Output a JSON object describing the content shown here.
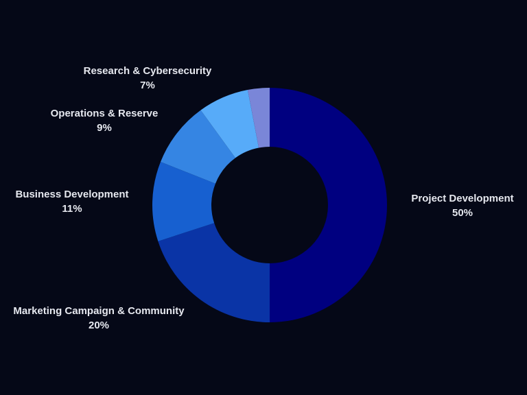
{
  "chart_data": {
    "type": "pie",
    "donut": true,
    "categories": [
      "Project Development",
      "Marketing Campaign & Community",
      "Business Development",
      "Operations & Reserve",
      "Research & Cybersecurity",
      ""
    ],
    "values": [
      50,
      20,
      11,
      9,
      7,
      3
    ],
    "percent_labels": [
      "50%",
      "20%",
      "11%",
      "9%",
      "7%",
      ""
    ],
    "colors": [
      "#000080",
      "#0a34a6",
      "#1760d0",
      "#3585e3",
      "#57abf9",
      "#7a86d8"
    ],
    "background": "#050817",
    "title": ""
  }
}
